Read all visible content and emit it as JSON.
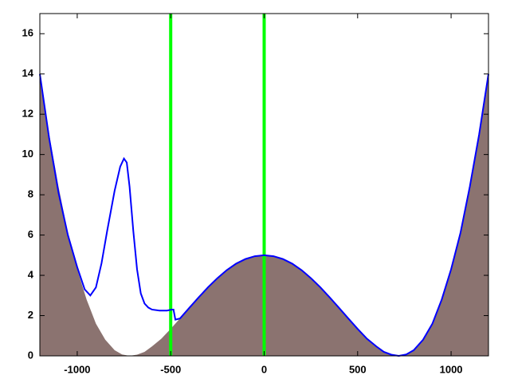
{
  "chart_data": {
    "type": "line",
    "xlim": [
      -1200,
      1200
    ],
    "ylim": [
      0,
      17
    ],
    "xticks": [
      -1000,
      -500,
      0,
      500,
      1000
    ],
    "yticks": [
      0,
      2,
      4,
      6,
      8,
      10,
      12,
      14,
      16
    ],
    "series": [
      {
        "fill": true,
        "color": "#8b7370",
        "x": [
          -1200,
          -1150,
          -1100,
          -1050,
          -1000,
          -950,
          -900,
          -850,
          -800,
          -760,
          -720,
          -680,
          -640,
          -600,
          -550,
          -500,
          -450,
          -400,
          -350,
          -300,
          -250,
          -200,
          -150,
          -100,
          -50,
          0,
          50,
          100,
          150,
          200,
          250,
          300,
          350,
          400,
          450,
          500,
          550,
          600,
          640,
          680,
          720,
          760,
          800,
          850,
          900,
          950,
          1000,
          1050,
          1100,
          1150,
          1200
        ],
        "values": [
          14,
          11,
          8.4,
          6.1,
          4.3,
          2.8,
          1.6,
          0.8,
          0.28,
          0.07,
          0,
          0.06,
          0.2,
          0.47,
          0.85,
          1.34,
          1.86,
          2.39,
          2.91,
          3.41,
          3.86,
          4.26,
          4.58,
          4.81,
          4.95,
          5,
          4.95,
          4.81,
          4.58,
          4.26,
          3.86,
          3.41,
          2.91,
          2.39,
          1.86,
          1.34,
          0.85,
          0.47,
          0.2,
          0.06,
          0,
          0.07,
          0.28,
          0.8,
          1.6,
          2.8,
          4.3,
          6.1,
          8.4,
          11,
          14
        ]
      },
      {
        "fill": false,
        "color": "#0000ff",
        "x": [
          -1200,
          -1150,
          -1100,
          -1050,
          -1000,
          -960,
          -930,
          -900,
          -870,
          -840,
          -800,
          -770,
          -750,
          -735,
          -720,
          -700,
          -680,
          -660,
          -640,
          -620,
          -600,
          -560,
          -520,
          -495,
          -485,
          -475,
          -450,
          -400,
          -350,
          -300,
          -250,
          -200,
          -150,
          -100,
          -50,
          0,
          50,
          100,
          150,
          200,
          250,
          300,
          350,
          400,
          450,
          500,
          550,
          600,
          640,
          680,
          720,
          760,
          800,
          850,
          900,
          950,
          1000,
          1050,
          1100,
          1150,
          1200
        ],
        "values": [
          14,
          10.8,
          8.1,
          6,
          4.4,
          3.3,
          3,
          3.4,
          4.6,
          6.2,
          8.2,
          9.4,
          9.8,
          9.6,
          8.4,
          6.2,
          4.3,
          3.1,
          2.6,
          2.4,
          2.3,
          2.25,
          2.25,
          2.3,
          2.3,
          1.8,
          1.86,
          2.39,
          2.91,
          3.41,
          3.86,
          4.26,
          4.58,
          4.81,
          4.95,
          5,
          4.95,
          4.81,
          4.58,
          4.26,
          3.86,
          3.41,
          2.91,
          2.39,
          1.86,
          1.34,
          0.85,
          0.47,
          0.2,
          0.06,
          0,
          0.07,
          0.28,
          0.8,
          1.6,
          2.8,
          4.3,
          6.1,
          8.4,
          11,
          14
        ]
      }
    ],
    "vlines": {
      "x": [
        -500,
        0
      ],
      "color": "#00ff00"
    }
  }
}
